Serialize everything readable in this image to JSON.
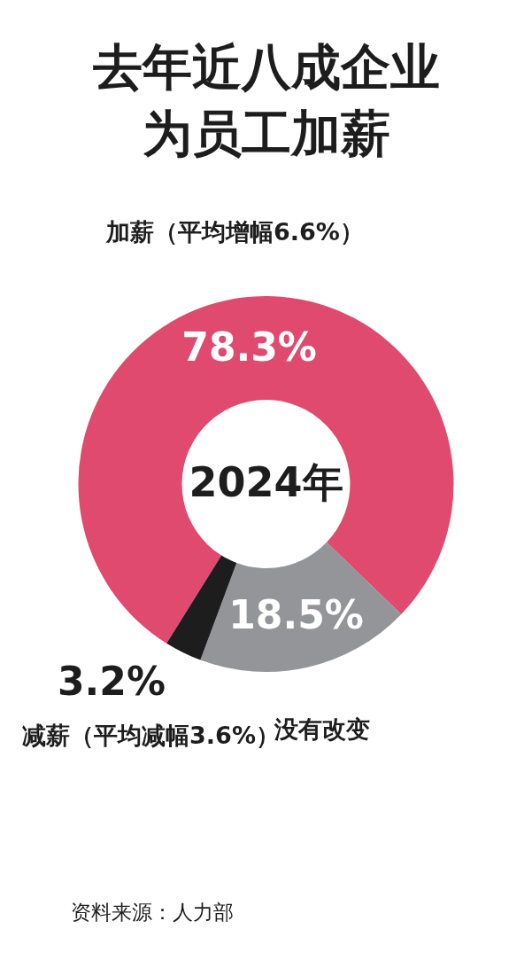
{
  "chart_data": {
    "type": "donut",
    "title": "去年近八成企业为员工加薪",
    "categories": [
      "加薪（平均增幅6.6%）",
      "没有改变",
      "减薪（平均减幅3.6%）"
    ],
    "values": [
      78.3,
      18.5,
      3.2
    ],
    "colors": [
      "#e04a6e",
      "#939598",
      "#1d1d1d"
    ],
    "value_labels": [
      "78.3%",
      "18.5%",
      "3.2%"
    ],
    "annotations": [
      "2024年",
      "资料来源：人力部"
    ]
  }
}
